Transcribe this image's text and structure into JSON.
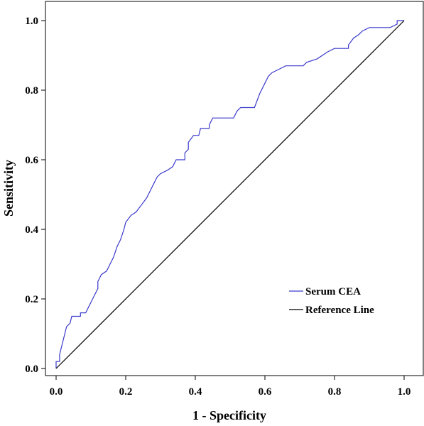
{
  "chart_data": {
    "type": "line",
    "title": "",
    "xlabel": "1 - Specificity",
    "ylabel": "Sensitivity",
    "xlim": [
      0,
      1
    ],
    "ylim": [
      0,
      1
    ],
    "x_ticks": [
      "0.0",
      "0.2",
      "0.4",
      "0.6",
      "0.8",
      "1.0"
    ],
    "y_ticks": [
      "0.0",
      "0.2",
      "0.4",
      "0.6",
      "0.8",
      "1.0"
    ],
    "grid": false,
    "legend_placement": "bottom-right",
    "series": [
      {
        "name": "Serum CEA",
        "color": "#3a3acc",
        "points": [
          [
            0.0,
            0.0
          ],
          [
            0.0,
            0.02
          ],
          [
            0.01,
            0.02
          ],
          [
            0.01,
            0.04
          ],
          [
            0.015,
            0.06
          ],
          [
            0.02,
            0.08
          ],
          [
            0.025,
            0.1
          ],
          [
            0.03,
            0.12
          ],
          [
            0.04,
            0.13
          ],
          [
            0.045,
            0.15
          ],
          [
            0.07,
            0.15
          ],
          [
            0.07,
            0.16
          ],
          [
            0.085,
            0.16
          ],
          [
            0.09,
            0.17
          ],
          [
            0.1,
            0.19
          ],
          [
            0.11,
            0.21
          ],
          [
            0.12,
            0.23
          ],
          [
            0.12,
            0.25
          ],
          [
            0.13,
            0.27
          ],
          [
            0.145,
            0.28
          ],
          [
            0.155,
            0.3
          ],
          [
            0.165,
            0.32
          ],
          [
            0.175,
            0.35
          ],
          [
            0.185,
            0.37
          ],
          [
            0.195,
            0.4
          ],
          [
            0.2,
            0.42
          ],
          [
            0.215,
            0.44
          ],
          [
            0.23,
            0.45
          ],
          [
            0.245,
            0.47
          ],
          [
            0.26,
            0.49
          ],
          [
            0.27,
            0.51
          ],
          [
            0.28,
            0.53
          ],
          [
            0.29,
            0.55
          ],
          [
            0.3,
            0.56
          ],
          [
            0.32,
            0.57
          ],
          [
            0.335,
            0.58
          ],
          [
            0.345,
            0.6
          ],
          [
            0.37,
            0.6
          ],
          [
            0.37,
            0.62
          ],
          [
            0.38,
            0.63
          ],
          [
            0.38,
            0.65
          ],
          [
            0.395,
            0.67
          ],
          [
            0.41,
            0.67
          ],
          [
            0.415,
            0.69
          ],
          [
            0.44,
            0.69
          ],
          [
            0.44,
            0.7
          ],
          [
            0.45,
            0.72
          ],
          [
            0.51,
            0.72
          ],
          [
            0.52,
            0.74
          ],
          [
            0.53,
            0.75
          ],
          [
            0.57,
            0.75
          ],
          [
            0.585,
            0.79
          ],
          [
            0.6,
            0.82
          ],
          [
            0.61,
            0.84
          ],
          [
            0.62,
            0.85
          ],
          [
            0.64,
            0.86
          ],
          [
            0.66,
            0.87
          ],
          [
            0.71,
            0.87
          ],
          [
            0.72,
            0.88
          ],
          [
            0.75,
            0.89
          ],
          [
            0.78,
            0.91
          ],
          [
            0.8,
            0.92
          ],
          [
            0.84,
            0.92
          ],
          [
            0.84,
            0.93
          ],
          [
            0.855,
            0.95
          ],
          [
            0.87,
            0.96
          ],
          [
            0.88,
            0.97
          ],
          [
            0.9,
            0.98
          ],
          [
            0.96,
            0.98
          ],
          [
            0.98,
            0.99
          ],
          [
            0.98,
            1.0
          ],
          [
            1.0,
            1.0
          ]
        ]
      },
      {
        "name": "Reference Line",
        "color": "#000000",
        "points": [
          [
            0,
            0
          ],
          [
            1,
            1
          ]
        ]
      }
    ]
  }
}
